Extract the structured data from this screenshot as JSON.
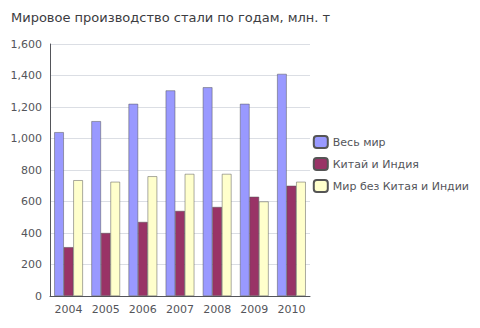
{
  "chart_data": {
    "type": "bar",
    "title": "Мировое производство стали по годам, млн. т",
    "categories": [
      "2004",
      "2005",
      "2006",
      "2007",
      "2008",
      "2009",
      "2010"
    ],
    "series": [
      {
        "name": "Весь мир",
        "color": "#9999ff",
        "values": [
          1040,
          1110,
          1220,
          1305,
          1325,
          1220,
          1410
        ]
      },
      {
        "name": "Китай и Индия",
        "color": "#993366",
        "values": [
          310,
          400,
          470,
          540,
          565,
          630,
          700
        ]
      },
      {
        "name": "Мир без Китая и Индии",
        "color": "#ffffcc",
        "values": [
          735,
          725,
          760,
          775,
          775,
          600,
          725
        ]
      }
    ],
    "ylim": [
      0,
      1600
    ],
    "yticks": [
      0,
      200,
      400,
      600,
      800,
      1000,
      1200,
      1400,
      1600
    ],
    "grid": true,
    "legend": "right"
  }
}
